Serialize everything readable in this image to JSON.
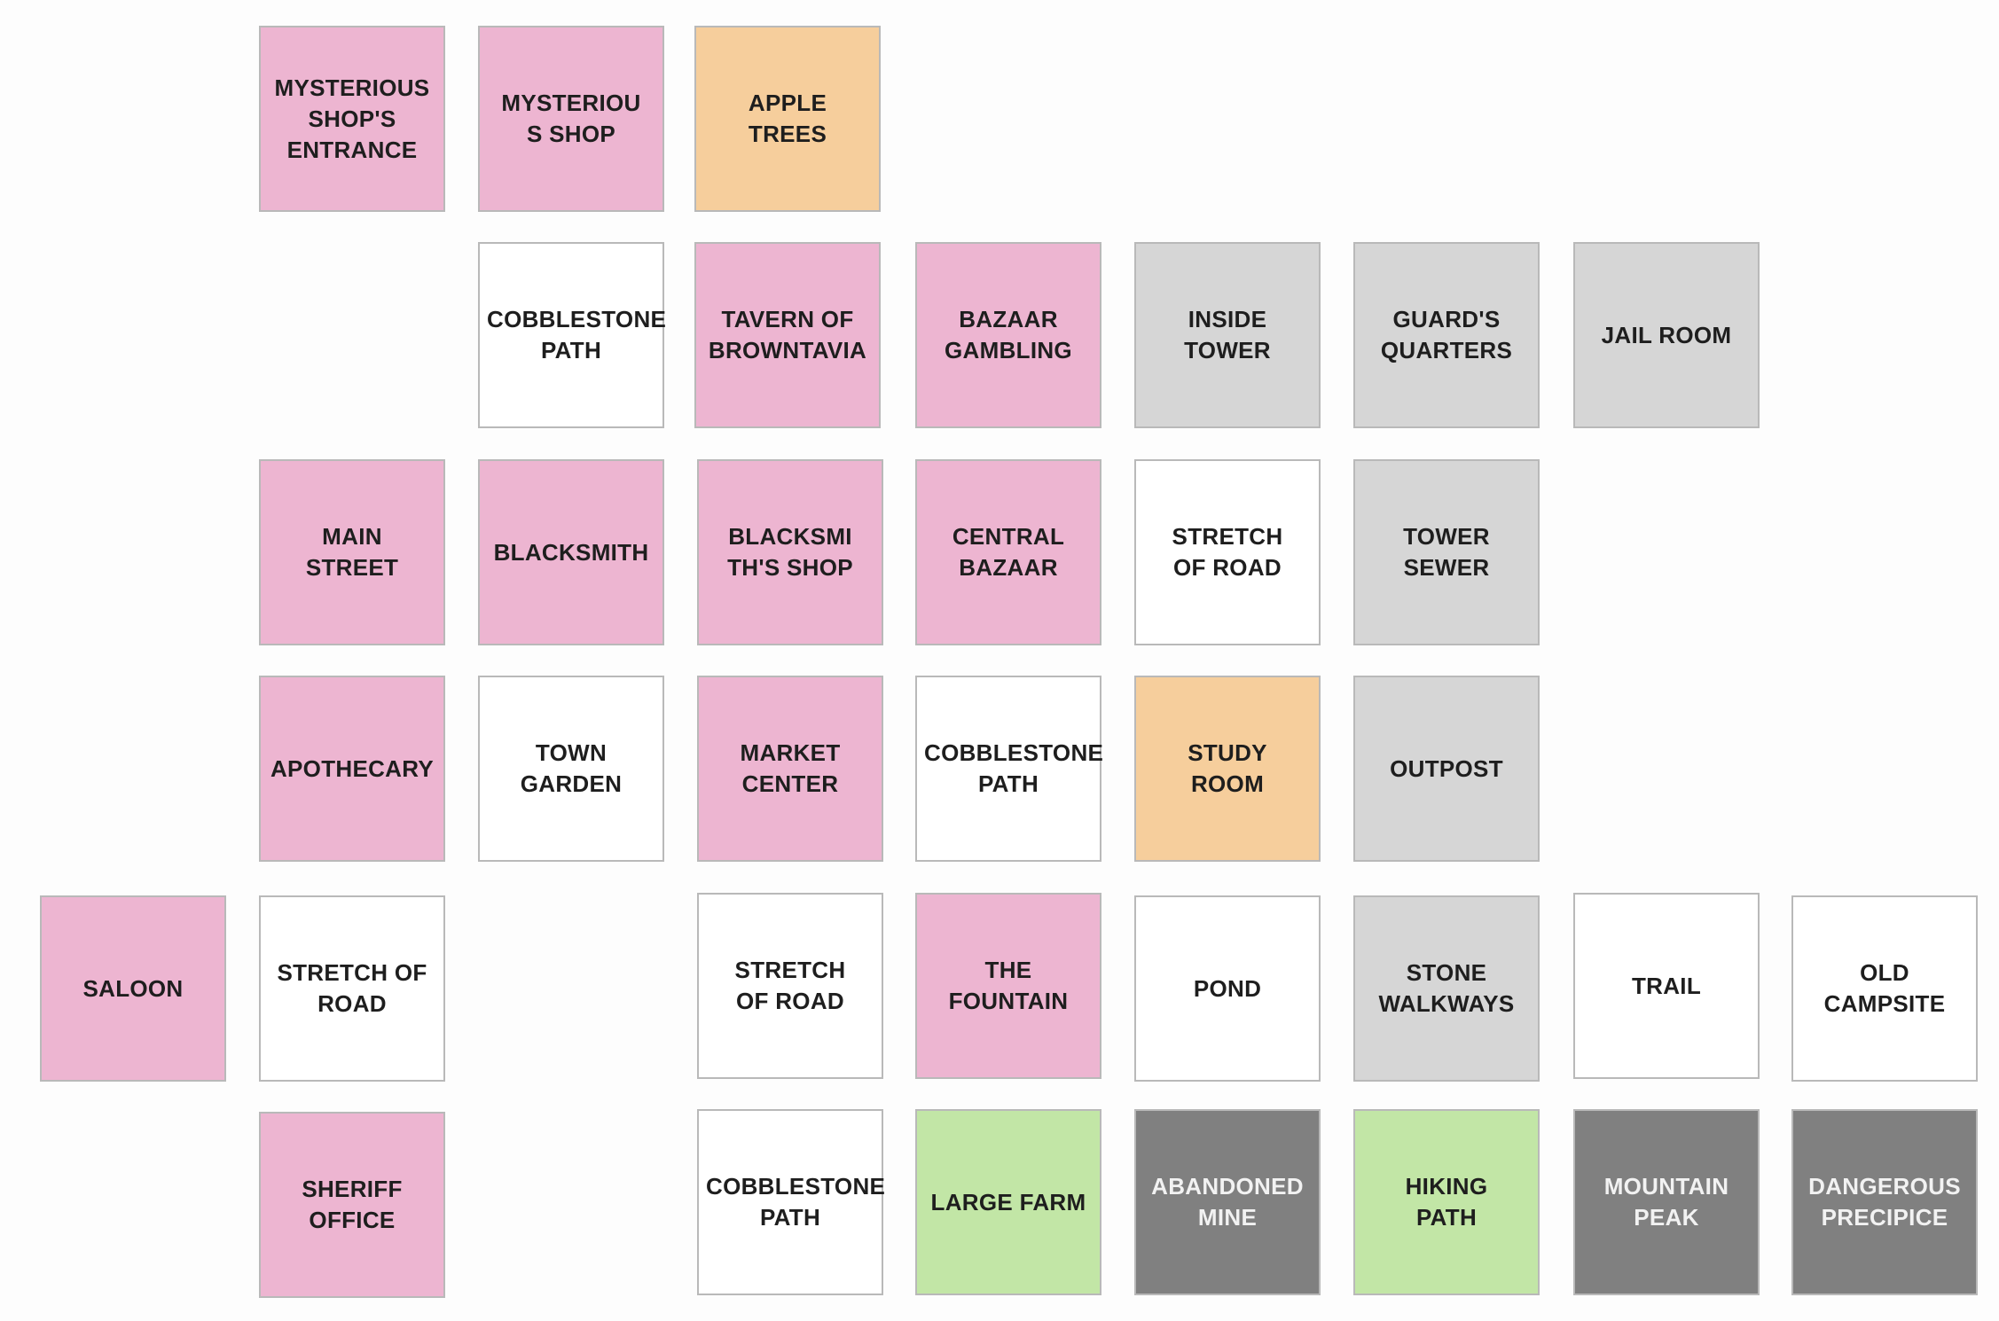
{
  "colors": {
    "town": "#edb5d1",
    "orchard_study": "#f6ce9c",
    "path": "#ffffff",
    "tower": "#d6d6d6",
    "nature": "#c2e6a6",
    "mountain": "#808080"
  },
  "tiles": {
    "mysterious_shop_entrance": "MYSTERIOUS\nSHOP'S ENTRANCE",
    "mysterious_shop": "MYSTERIOU\nS SHOP",
    "apple_trees": "APPLE\nTREES",
    "cobblestone_path_1": "COBBLESTONE\nPATH",
    "tavern": "TAVERN OF\nBROWNTAVIA",
    "bazaar_gambling": "BAZAAR\nGAMBLING",
    "inside_tower": "INSIDE\nTOWER",
    "guards_quarters": "GUARD'S\nQUARTERS",
    "jail_room": "JAIL ROOM",
    "main_street": "MAIN\nSTREET",
    "blacksmith": "BLACKSMITH",
    "blacksmiths_shop": "BLACKSMI\nTH'S SHOP",
    "central_bazaar": "CENTRAL\nBAZAAR",
    "stretch_of_road_1": "STRETCH\nOF ROAD",
    "tower_sewer": "TOWER\nSEWER",
    "apothecary": "APOTHECARY",
    "town_garden": "TOWN\nGARDEN",
    "market_center": "MARKET\nCENTER",
    "cobblestone_path_2": "COBBLESTONE\nPATH",
    "study_room": "STUDY\nROOM",
    "outpost": "OUTPOST",
    "saloon": "SALOON",
    "stretch_of_road_2": "STRETCH OF\nROAD",
    "stretch_of_road_3": "STRETCH\nOF ROAD",
    "the_fountain": "THE\nFOUNTAIN",
    "pond": "POND",
    "stone_walkways": "STONE\nWALKWAYS",
    "trail": "TRAIL",
    "old_campsite": "OLD\nCAMPSITE",
    "sheriff_office": "SHERIFF\nOFFICE",
    "cobblestone_path_3": "COBBLESTONE\nPATH",
    "large_farm": "LARGE FARM",
    "abandoned_mine": "ABANDONED\nMINE",
    "hiking_path": "HIKING\nPATH",
    "mountain_peak": "MOUNTAIN\nPEAK",
    "dangerous_precipice": "DANGEROUS\nPRECIPICE"
  }
}
